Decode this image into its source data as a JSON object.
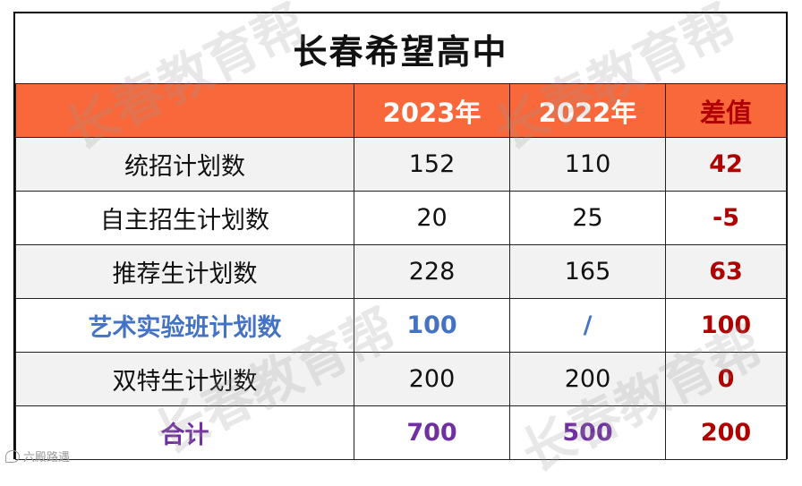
{
  "title": "长春希望高中",
  "headers": {
    "label": "",
    "y2023": "2023年",
    "y2022": "2022年",
    "diff": "差值"
  },
  "rows": [
    {
      "label": "统招计划数",
      "y2023": "152",
      "y2022": "110",
      "diff": "42"
    },
    {
      "label": "自主招生计划数",
      "y2023": "20",
      "y2022": "25",
      "diff": "-5"
    },
    {
      "label": "推荐生计划数",
      "y2023": "228",
      "y2022": "165",
      "diff": "63"
    },
    {
      "label": "艺术实验班计划数",
      "y2023": "100",
      "y2022": "/",
      "diff": "100"
    },
    {
      "label": "双特生计划数",
      "y2023": "200",
      "y2022": "200",
      "diff": "0"
    },
    {
      "label": "合计",
      "y2023": "700",
      "y2022": "500",
      "diff": "200"
    }
  ],
  "watermark": "长春教育帮",
  "footer_logo": "六殿路遇",
  "colors": {
    "header_bg": "#f9683b",
    "diff_red": "#b00000",
    "art_blue": "#4472c4",
    "total_purple": "#7030a0"
  }
}
